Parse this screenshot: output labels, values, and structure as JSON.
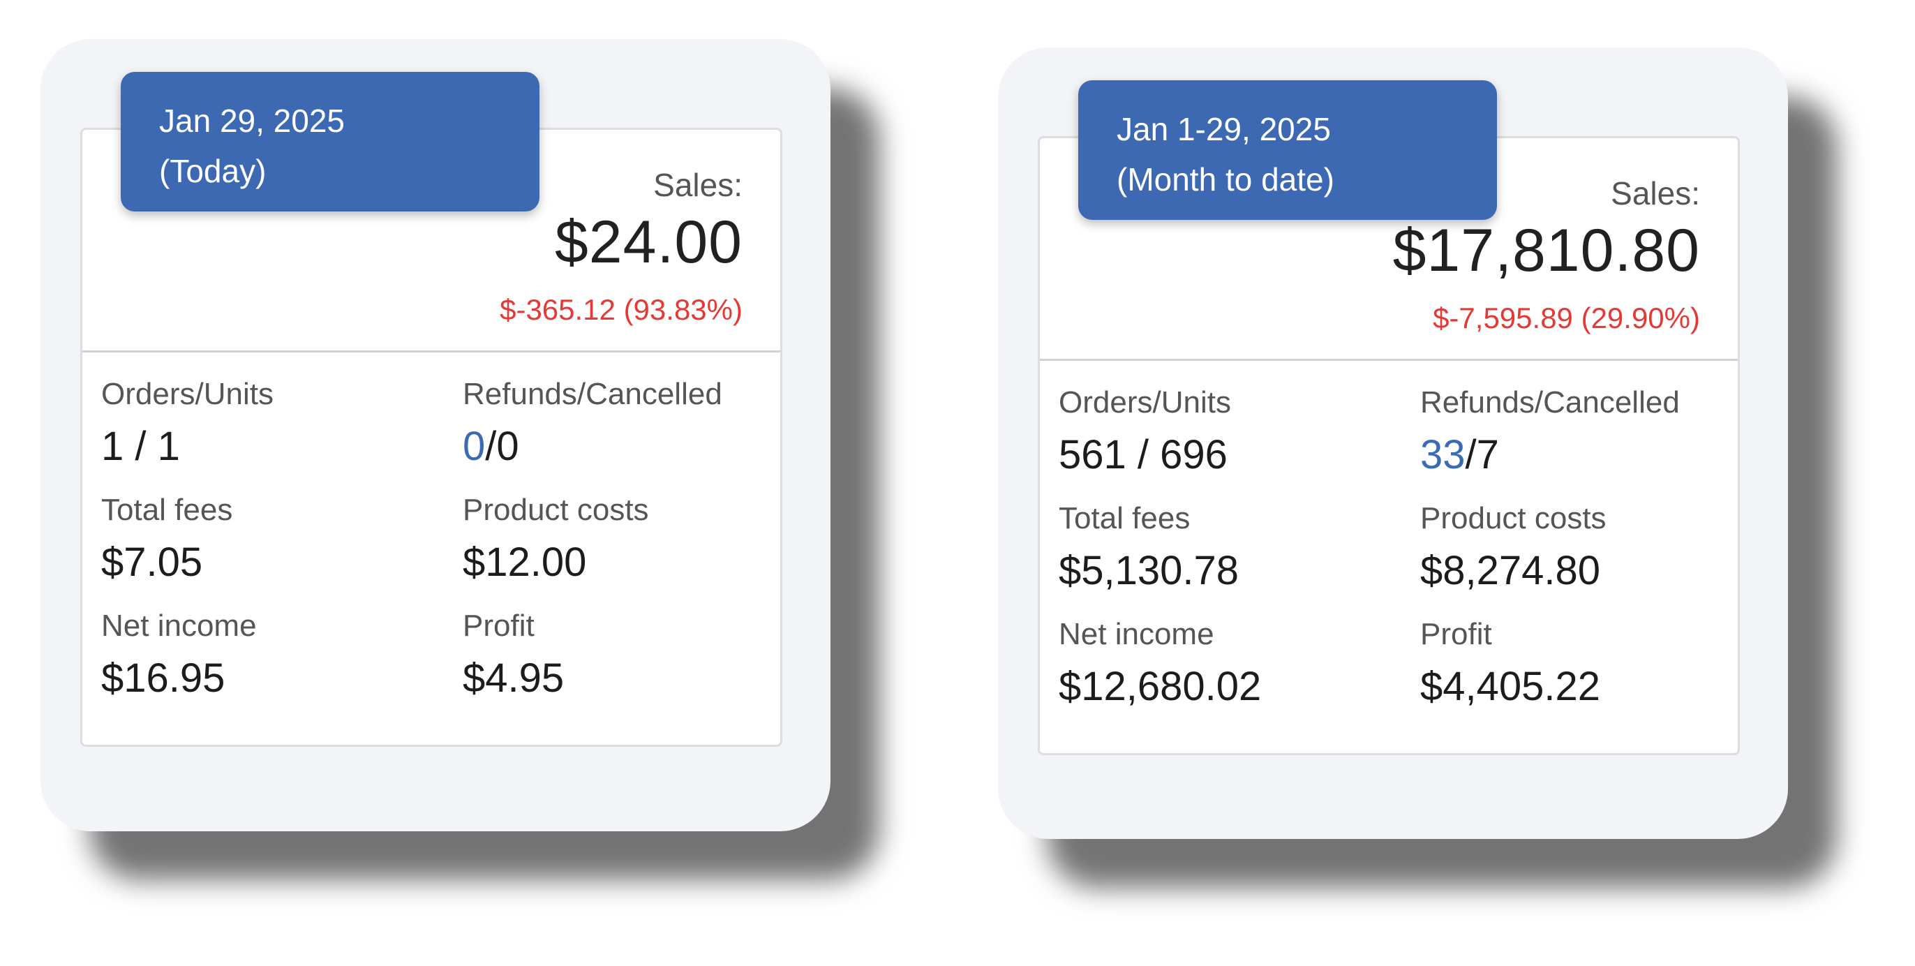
{
  "cards": [
    {
      "date_line1": "Jan 29, 2025",
      "date_line2": "(Today)",
      "sales_label": "Sales:",
      "sales_value": "$24.00",
      "sales_change": "$-365.12 (93.83%)",
      "orders_label": "Orders/Units",
      "orders_value": "1 / 1",
      "refunds_label": "Refunds/Cancelled",
      "refunds_count": "0",
      "refunds_rest": "/0",
      "fees_label": "Total fees",
      "fees_value": "$7.05",
      "costs_label": "Product costs",
      "costs_value": "$12.00",
      "net_label": "Net income",
      "net_value": "$16.95",
      "profit_label": "Profit",
      "profit_value": "$4.95"
    },
    {
      "date_line1": "Jan 1-29, 2025",
      "date_line2": "(Month to date)",
      "sales_label": "Sales:",
      "sales_value": "$17,810.80",
      "sales_change": "$-7,595.89 (29.90%)",
      "orders_label": "Orders/Units",
      "orders_value": "561 / 696",
      "refunds_label": "Refunds/Cancelled",
      "refunds_count": "33",
      "refunds_rest": "/7",
      "fees_label": "Total fees",
      "fees_value": "$5,130.78",
      "costs_label": "Product costs",
      "costs_value": "$8,274.80",
      "net_label": "Net income",
      "net_value": "$12,680.02",
      "profit_label": "Profit",
      "profit_value": "$4,405.22"
    }
  ],
  "colors": {
    "badge": "#3d69b3",
    "negative_change": "#e53935",
    "link": "#3b6bb5"
  }
}
